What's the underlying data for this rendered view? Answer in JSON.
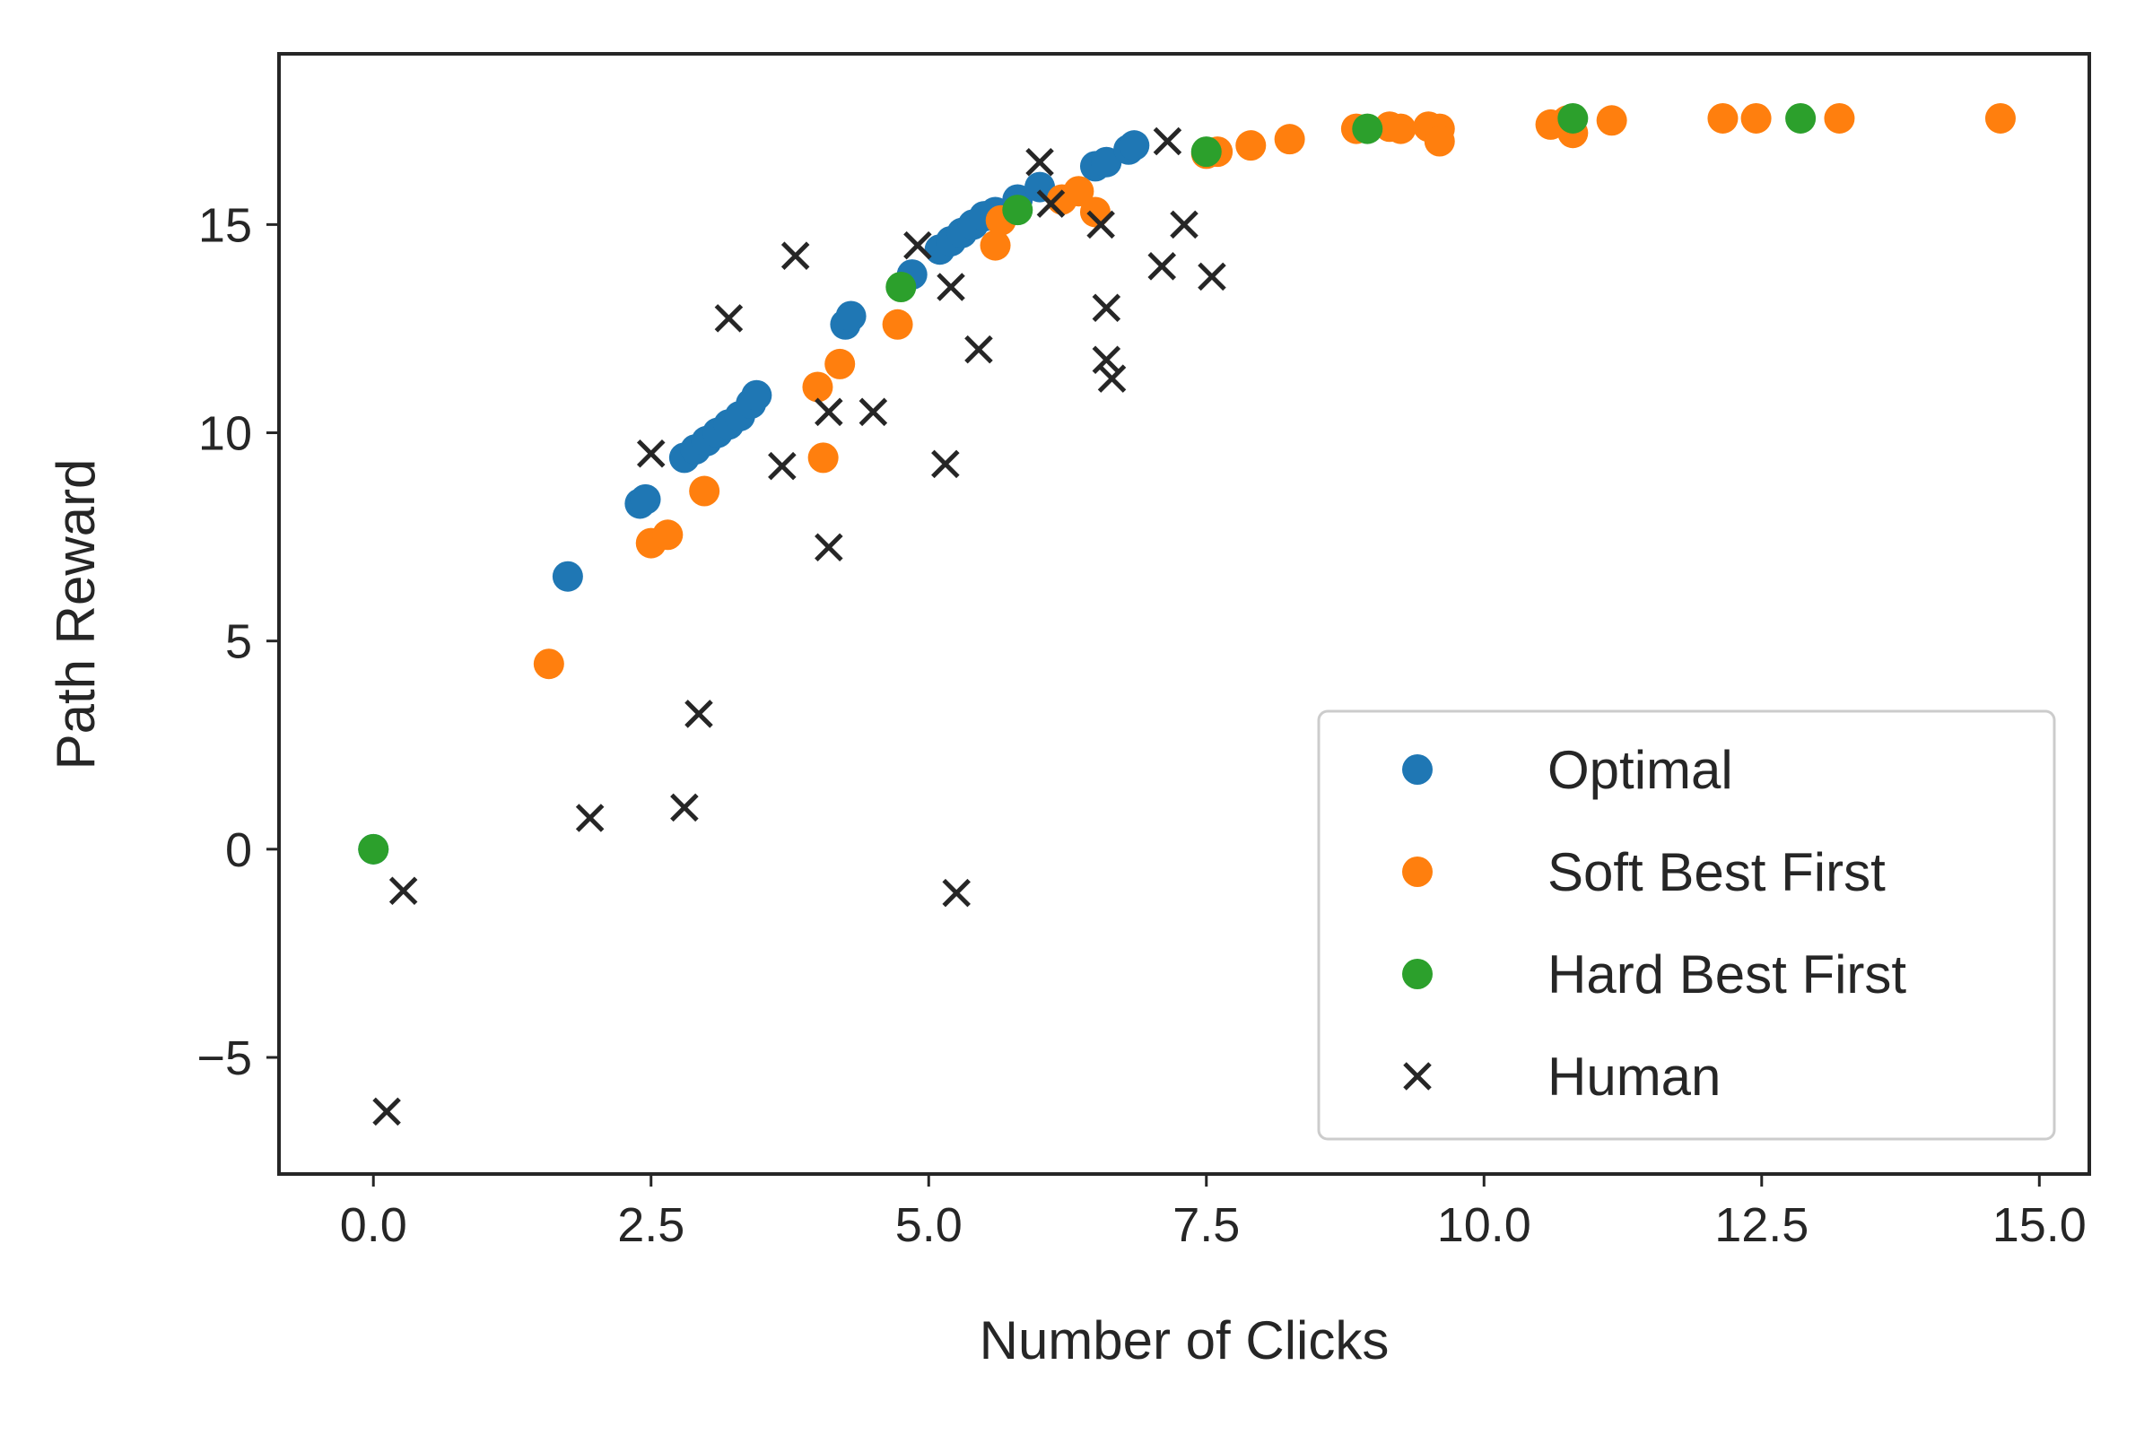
{
  "chart_data": {
    "type": "scatter",
    "xlabel": "Number of Clicks",
    "ylabel": "Path Reward",
    "xlim": [
      -0.85,
      15.45
    ],
    "ylim": [
      -7.8,
      19.1
    ],
    "xticks": [
      0.0,
      2.5,
      5.0,
      7.5,
      10.0,
      12.5,
      15.0
    ],
    "xtick_labels": [
      "0.0",
      "2.5",
      "5.0",
      "7.5",
      "10.0",
      "12.5",
      "15.0"
    ],
    "yticks": [
      -5,
      0,
      5,
      10,
      15
    ],
    "ytick_labels": [
      "−5",
      "0",
      "5",
      "10",
      "15"
    ],
    "grid": false,
    "legend_position": "lower-right",
    "series": [
      {
        "name": "Optimal",
        "marker": "circle",
        "color": "#1f77b4",
        "points": [
          [
            0.0,
            0.0
          ],
          [
            1.75,
            6.55
          ],
          [
            2.4,
            8.3
          ],
          [
            2.45,
            8.4
          ],
          [
            2.8,
            9.4
          ],
          [
            2.9,
            9.6
          ],
          [
            3.0,
            9.8
          ],
          [
            3.1,
            10.0
          ],
          [
            3.2,
            10.2
          ],
          [
            3.3,
            10.4
          ],
          [
            3.4,
            10.7
          ],
          [
            3.45,
            10.9
          ],
          [
            4.25,
            12.6
          ],
          [
            4.3,
            12.8
          ],
          [
            4.85,
            13.8
          ],
          [
            5.1,
            14.4
          ],
          [
            5.2,
            14.6
          ],
          [
            5.3,
            14.8
          ],
          [
            5.4,
            15.0
          ],
          [
            5.5,
            15.2
          ],
          [
            5.6,
            15.3
          ],
          [
            5.8,
            15.6
          ],
          [
            6.0,
            15.9
          ],
          [
            6.5,
            16.4
          ],
          [
            6.6,
            16.5
          ],
          [
            6.8,
            16.8
          ],
          [
            6.85,
            16.9
          ]
        ]
      },
      {
        "name": "Soft Best First",
        "marker": "circle",
        "color": "#ff7f0e",
        "points": [
          [
            1.58,
            4.45
          ],
          [
            2.5,
            7.35
          ],
          [
            2.65,
            7.55
          ],
          [
            2.98,
            8.6
          ],
          [
            4.0,
            11.1
          ],
          [
            4.05,
            9.4
          ],
          [
            4.2,
            11.65
          ],
          [
            4.72,
            12.6
          ],
          [
            5.6,
            14.5
          ],
          [
            5.65,
            15.1
          ],
          [
            6.2,
            15.6
          ],
          [
            6.35,
            15.8
          ],
          [
            6.5,
            15.3
          ],
          [
            7.5,
            16.7
          ],
          [
            7.6,
            16.75
          ],
          [
            7.9,
            16.9
          ],
          [
            8.25,
            17.05
          ],
          [
            8.85,
            17.3
          ],
          [
            9.15,
            17.35
          ],
          [
            9.25,
            17.3
          ],
          [
            9.5,
            17.35
          ],
          [
            9.6,
            17.3
          ],
          [
            9.6,
            17.0
          ],
          [
            10.6,
            17.4
          ],
          [
            10.75,
            17.5
          ],
          [
            10.8,
            17.2
          ],
          [
            11.15,
            17.5
          ],
          [
            12.15,
            17.55
          ],
          [
            12.45,
            17.55
          ],
          [
            13.2,
            17.55
          ],
          [
            14.65,
            17.55
          ]
        ]
      },
      {
        "name": "Hard Best First",
        "marker": "circle",
        "color": "#2ca02c",
        "points": [
          [
            0.0,
            0.0
          ],
          [
            4.75,
            13.5
          ],
          [
            5.8,
            15.35
          ],
          [
            7.5,
            16.75
          ],
          [
            8.95,
            17.3
          ],
          [
            10.8,
            17.55
          ],
          [
            12.85,
            17.55
          ]
        ]
      },
      {
        "name": "Human",
        "marker": "x",
        "color": "#262626",
        "points": [
          [
            0.12,
            -6.3
          ],
          [
            0.27,
            -1.0
          ],
          [
            1.95,
            0.75
          ],
          [
            2.5,
            9.5
          ],
          [
            2.8,
            1.0
          ],
          [
            2.93,
            3.25
          ],
          [
            3.2,
            12.75
          ],
          [
            3.68,
            9.2
          ],
          [
            3.8,
            14.25
          ],
          [
            4.1,
            10.5
          ],
          [
            4.1,
            7.25
          ],
          [
            4.5,
            10.5
          ],
          [
            4.9,
            14.5
          ],
          [
            5.15,
            9.25
          ],
          [
            5.2,
            13.5
          ],
          [
            5.25,
            -1.05
          ],
          [
            5.45,
            12.0
          ],
          [
            6.0,
            16.5
          ],
          [
            6.1,
            15.5
          ],
          [
            6.55,
            15.0
          ],
          [
            6.6,
            13.0
          ],
          [
            6.6,
            11.75
          ],
          [
            6.65,
            11.3
          ],
          [
            7.1,
            14.0
          ],
          [
            7.15,
            17.0
          ],
          [
            7.3,
            15.0
          ],
          [
            7.55,
            13.75
          ]
        ]
      }
    ]
  }
}
